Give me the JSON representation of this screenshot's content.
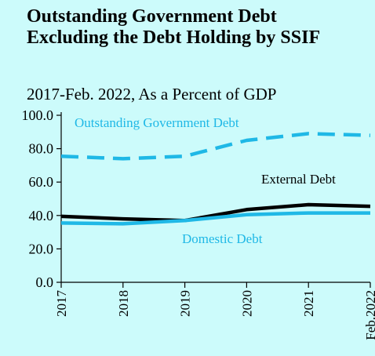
{
  "chart_data": {
    "type": "line",
    "title": "Outstanding Government Debt Excluding the Debt Holding by SSIF",
    "subtitle": "2017-Feb. 2022, As a Percent of GDP",
    "categories": [
      "2017",
      "2018",
      "2019",
      "2020",
      "2021",
      "Feb.2022"
    ],
    "ylim": [
      0,
      100
    ],
    "yticks": [
      "0.0",
      "20.0",
      "40.0",
      "60.0",
      "80.0",
      "100.0"
    ],
    "grid": false,
    "series": [
      {
        "name": "Outstanding Government Debt",
        "values": [
          75.5,
          74.0,
          75.5,
          85.0,
          89.0,
          88.0
        ],
        "color": "#1fb8e6",
        "dash": "dashed"
      },
      {
        "name": "External Debt",
        "values": [
          39.5,
          38.0,
          37.0,
          43.5,
          46.5,
          45.5
        ],
        "color": "#000000",
        "dash": "solid"
      },
      {
        "name": "Domestic Debt",
        "values": [
          35.5,
          35.0,
          37.0,
          40.5,
          41.5,
          41.5
        ],
        "color": "#1fb8e6",
        "dash": "solid"
      }
    ]
  }
}
